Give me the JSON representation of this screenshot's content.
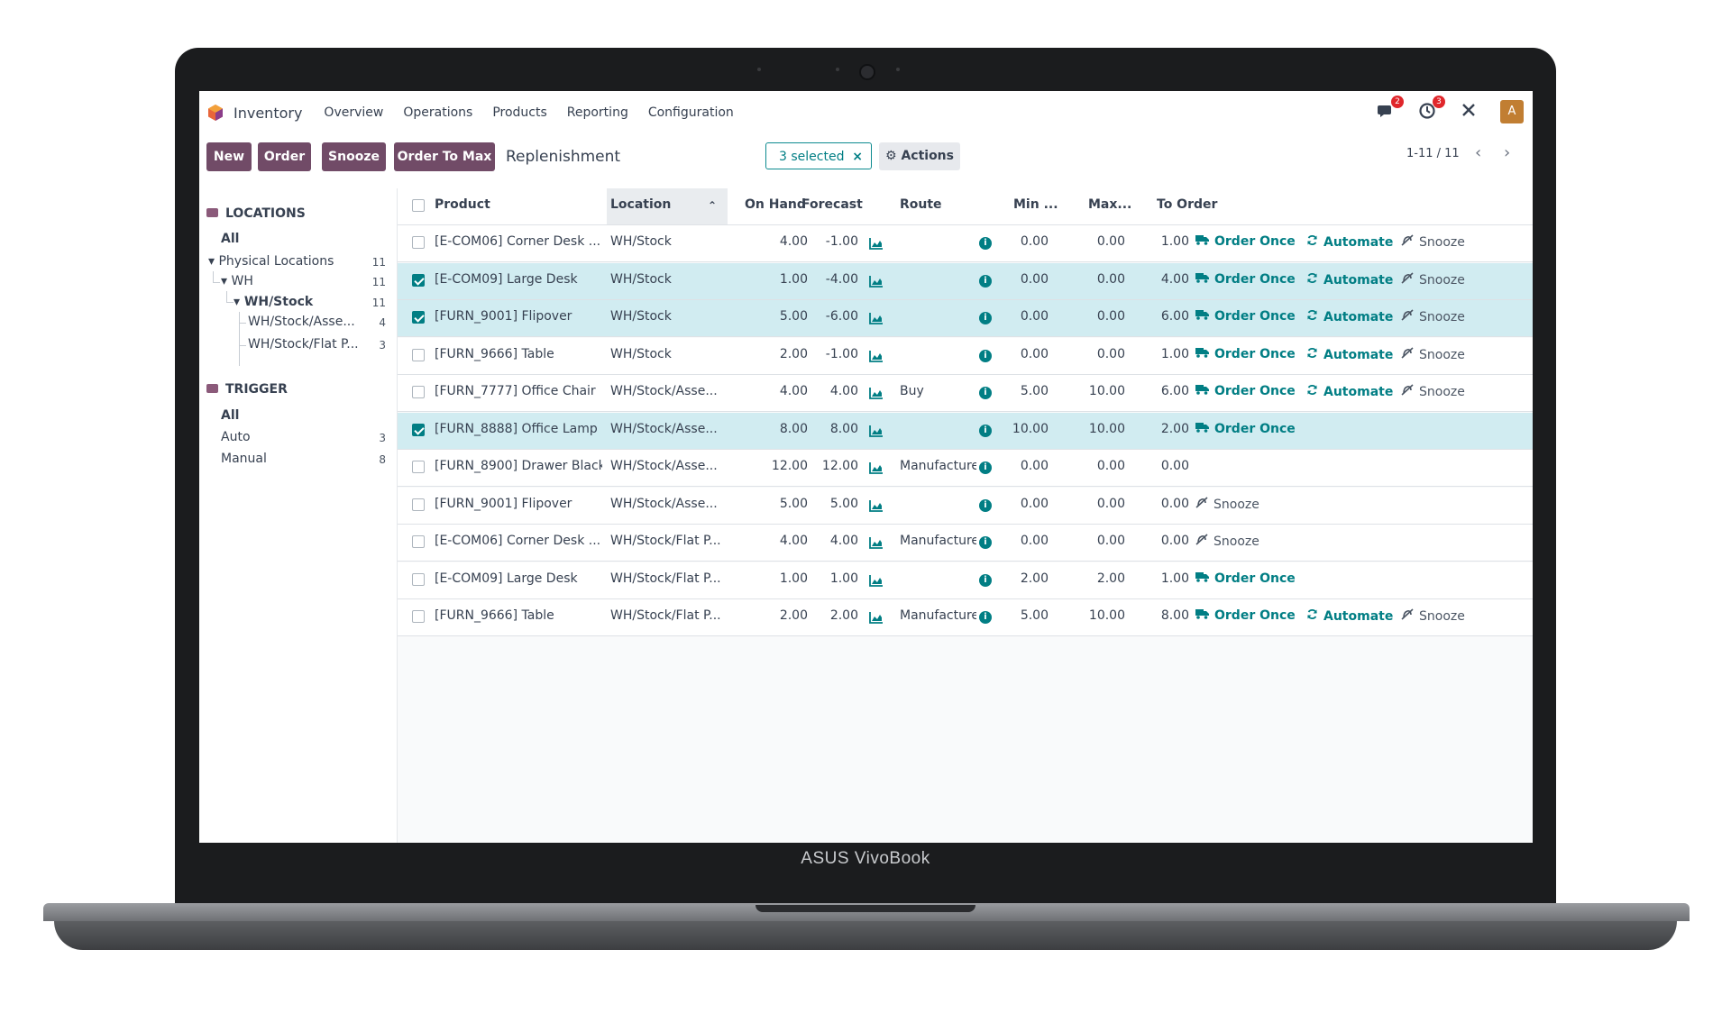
{
  "device": {
    "brand": "ASUS VivoBook"
  },
  "navbar": {
    "app_name": "Inventory",
    "menu": [
      "Overview",
      "Operations",
      "Products",
      "Reporting",
      "Configuration"
    ],
    "messages_badge": "2",
    "activities_badge": "3",
    "avatar_letter": "A"
  },
  "controlbar": {
    "buttons": [
      "New",
      "Order",
      "Snooze",
      "Order To Max"
    ],
    "page_title": "Replenishment",
    "selected_label": "3 selected",
    "selected_close": "×",
    "actions_label": "Actions",
    "pager": "1-11 / 11",
    "prev_icon": "‹",
    "next_icon": "›"
  },
  "sidebar": {
    "locations_title": "LOCATIONS",
    "locations": [
      {
        "label": "All",
        "count": ""
      },
      {
        "label": "Physical Locations",
        "count": "11"
      },
      {
        "label": "WH",
        "count": "11"
      },
      {
        "label": "WH/Stock",
        "count": "11"
      },
      {
        "label": "WH/Stock/Asse...",
        "count": "4"
      },
      {
        "label": "WH/Stock/Flat P...",
        "count": "3"
      }
    ],
    "trigger_title": "TRIGGER",
    "triggers": [
      {
        "label": "All",
        "count": ""
      },
      {
        "label": "Auto",
        "count": "3"
      },
      {
        "label": "Manual",
        "count": "8"
      }
    ]
  },
  "table": {
    "headers": {
      "product": "Product",
      "location": "Location",
      "on_hand": "On Hand",
      "forecast": "Forecast",
      "route": "Route",
      "min": "Min ...",
      "max": "Max...",
      "to_order": "To Order"
    },
    "action_labels": {
      "order_once": "Order Once",
      "automate": "Automate",
      "snooze": "Snooze"
    },
    "rows": [
      {
        "product": "[E-COM06] Corner Desk ...",
        "location": "WH/Stock",
        "on_hand": "4.00",
        "forecast": "-1.00",
        "route": "",
        "min": "0.00",
        "max": "0.00",
        "to_order": "1.00",
        "selected": false,
        "actions": [
          "order_once",
          "automate",
          "snooze"
        ]
      },
      {
        "product": "[E-COM09] Large Desk",
        "location": "WH/Stock",
        "on_hand": "1.00",
        "forecast": "-4.00",
        "route": "",
        "min": "0.00",
        "max": "0.00",
        "to_order": "4.00",
        "selected": true,
        "actions": [
          "order_once",
          "automate",
          "snooze"
        ]
      },
      {
        "product": "[FURN_9001] Flipover",
        "location": "WH/Stock",
        "on_hand": "5.00",
        "forecast": "-6.00",
        "route": "",
        "min": "0.00",
        "max": "0.00",
        "to_order": "6.00",
        "selected": true,
        "actions": [
          "order_once",
          "automate",
          "snooze"
        ]
      },
      {
        "product": "[FURN_9666] Table",
        "location": "WH/Stock",
        "on_hand": "2.00",
        "forecast": "-1.00",
        "route": "",
        "min": "0.00",
        "max": "0.00",
        "to_order": "1.00",
        "selected": false,
        "actions": [
          "order_once",
          "automate",
          "snooze"
        ]
      },
      {
        "product": "[FURN_7777] Office Chair",
        "location": "WH/Stock/Asse...",
        "on_hand": "4.00",
        "forecast": "4.00",
        "route": "Buy",
        "min": "5.00",
        "max": "10.00",
        "to_order": "6.00",
        "selected": false,
        "actions": [
          "order_once",
          "automate",
          "snooze"
        ]
      },
      {
        "product": "[FURN_8888] Office Lamp",
        "location": "WH/Stock/Asse...",
        "on_hand": "8.00",
        "forecast": "8.00",
        "route": "",
        "min": "10.00",
        "max": "10.00",
        "to_order": "2.00",
        "selected": true,
        "actions": [
          "order_once"
        ]
      },
      {
        "product": "[FURN_8900] Drawer Black",
        "location": "WH/Stock/Asse...",
        "on_hand": "12.00",
        "forecast": "12.00",
        "route": "Manufacture",
        "min": "0.00",
        "max": "0.00",
        "to_order": "0.00",
        "selected": false,
        "actions": []
      },
      {
        "product": "[FURN_9001] Flipover",
        "location": "WH/Stock/Asse...",
        "on_hand": "5.00",
        "forecast": "5.00",
        "route": "",
        "min": "0.00",
        "max": "0.00",
        "to_order": "0.00",
        "selected": false,
        "actions": [
          "snooze"
        ]
      },
      {
        "product": "[E-COM06] Corner Desk ...",
        "location": "WH/Stock/Flat P...",
        "on_hand": "4.00",
        "forecast": "4.00",
        "route": "Manufacture",
        "min": "0.00",
        "max": "0.00",
        "to_order": "0.00",
        "selected": false,
        "actions": [
          "snooze"
        ]
      },
      {
        "product": "[E-COM09] Large Desk",
        "location": "WH/Stock/Flat P...",
        "on_hand": "1.00",
        "forecast": "1.00",
        "route": "",
        "min": "2.00",
        "max": "2.00",
        "to_order": "1.00",
        "selected": false,
        "actions": [
          "order_once"
        ]
      },
      {
        "product": "[FURN_9666] Table",
        "location": "WH/Stock/Flat P...",
        "on_hand": "2.00",
        "forecast": "2.00",
        "route": "Manufacture",
        "min": "5.00",
        "max": "10.00",
        "to_order": "8.00",
        "selected": false,
        "actions": [
          "order_once",
          "automate",
          "snooze"
        ]
      }
    ]
  },
  "colors": {
    "brand": "#714b67",
    "accent": "#017e84",
    "selected_row": "#d1ecf1"
  }
}
